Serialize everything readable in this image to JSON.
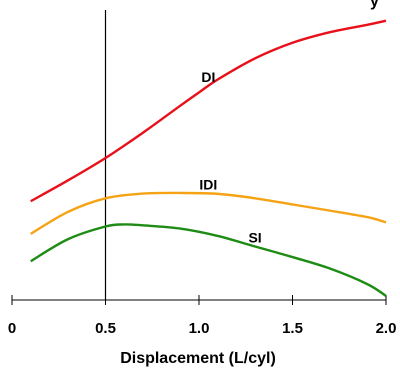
{
  "chart_data": {
    "type": "line",
    "title": "y",
    "xlabel": "Displacement (L/cyl)",
    "ylabel": "",
    "xlim": [
      0,
      2.0
    ],
    "ylim": [
      0,
      100
    ],
    "x_ticks": [
      {
        "value": 0,
        "label": "0"
      },
      {
        "value": 0.5,
        "label": "0.5"
      },
      {
        "value": 1.0,
        "label": "1.0"
      },
      {
        "value": 1.5,
        "label": "1.5"
      },
      {
        "value": 2.0,
        "label": "2.0"
      }
    ],
    "reference_line_x": 0.5,
    "grid": false,
    "legend": "inline labels",
    "series": [
      {
        "name": "DI",
        "color": "#e8101a",
        "label_at": 1.05,
        "x": [
          0.1,
          0.3,
          0.5,
          0.7,
          0.9,
          1.0,
          1.1,
          1.3,
          1.5,
          1.7,
          1.9,
          2.0
        ],
        "y": [
          33.6,
          40.7,
          48.3,
          56.9,
          66.1,
          70.6,
          75.0,
          82.2,
          87.5,
          91.1,
          93.6,
          95.0
        ]
      },
      {
        "name": "IDI",
        "color": "#f5a314",
        "label_at": 1.05,
        "x": [
          0.1,
          0.3,
          0.5,
          0.7,
          0.9,
          1.1,
          1.3,
          1.5,
          1.7,
          1.9,
          2.0
        ],
        "y": [
          22.5,
          30.0,
          34.6,
          36.2,
          36.4,
          36.1,
          34.6,
          32.5,
          30.4,
          28.2,
          26.4
        ]
      },
      {
        "name": "SI",
        "color": "#1e8c14",
        "label_at": 1.3,
        "x": [
          0.1,
          0.3,
          0.5,
          0.6,
          0.7,
          0.9,
          1.1,
          1.3,
          1.5,
          1.7,
          1.9,
          2.0
        ],
        "y": [
          13.2,
          20.7,
          25.0,
          25.7,
          25.4,
          24.3,
          21.8,
          18.2,
          14.6,
          10.7,
          5.4,
          1.4
        ]
      }
    ]
  }
}
